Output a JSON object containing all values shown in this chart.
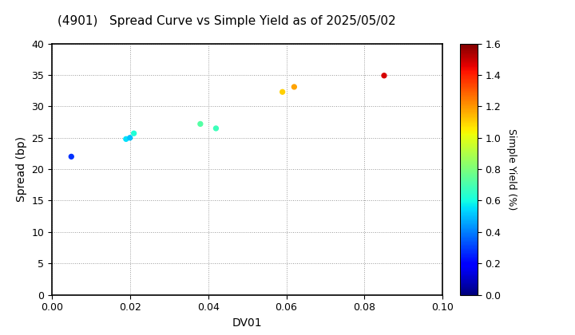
{
  "title": "(4901)   Spread Curve vs Simple Yield as of 2025/05/02",
  "xlabel": "DV01",
  "ylabel": "Spread (bp)",
  "colorbar_label": "Simple Yield (%)",
  "xlim": [
    0.0,
    0.1
  ],
  "ylim": [
    0,
    40
  ],
  "xticks": [
    0.0,
    0.02,
    0.04,
    0.06,
    0.08,
    0.1
  ],
  "yticks": [
    0,
    5,
    10,
    15,
    20,
    25,
    30,
    35,
    40
  ],
  "colorbar_min": 0.0,
  "colorbar_max": 1.6,
  "colorbar_ticks": [
    0.0,
    0.2,
    0.4,
    0.6,
    0.8,
    1.0,
    1.2,
    1.4,
    1.6
  ],
  "points": [
    {
      "dv01": 0.005,
      "spread": 22.0,
      "simple_yield": 0.28
    },
    {
      "dv01": 0.019,
      "spread": 24.8,
      "simple_yield": 0.55
    },
    {
      "dv01": 0.02,
      "spread": 25.0,
      "simple_yield": 0.5
    },
    {
      "dv01": 0.021,
      "spread": 25.7,
      "simple_yield": 0.62
    },
    {
      "dv01": 0.038,
      "spread": 27.2,
      "simple_yield": 0.72
    },
    {
      "dv01": 0.042,
      "spread": 26.5,
      "simple_yield": 0.68
    },
    {
      "dv01": 0.059,
      "spread": 32.3,
      "simple_yield": 1.1
    },
    {
      "dv01": 0.062,
      "spread": 33.1,
      "simple_yield": 1.18
    },
    {
      "dv01": 0.085,
      "spread": 34.9,
      "simple_yield": 1.48
    }
  ],
  "marker_size": 18,
  "cmap": "jet",
  "bg_color": "#ffffff",
  "title_fontsize": 11,
  "tick_fontsize": 9,
  "label_fontsize": 10,
  "colorbar_label_fontsize": 9
}
